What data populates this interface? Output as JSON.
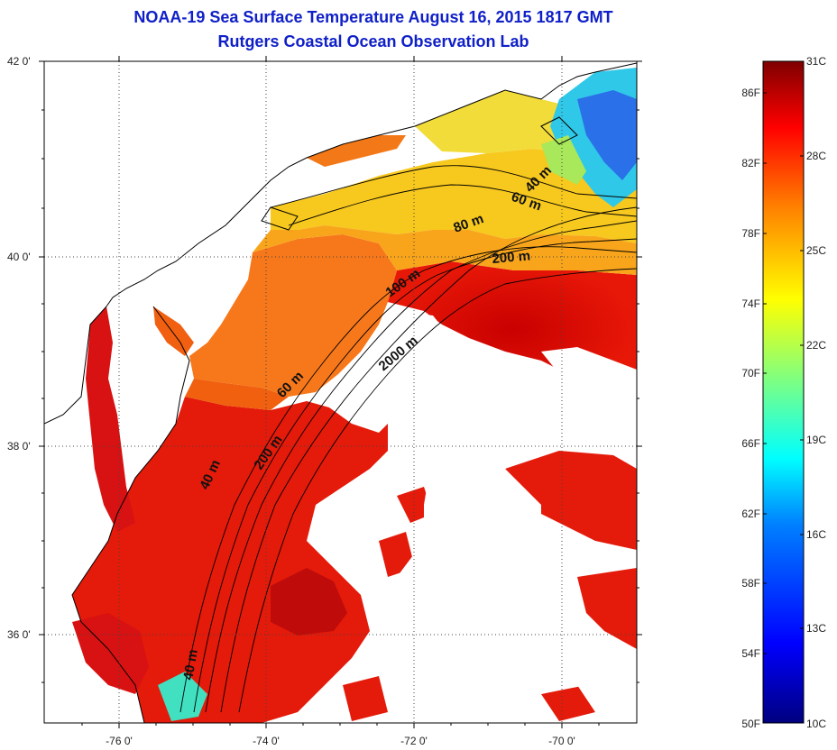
{
  "title": {
    "line1": "NOAA-19 Sea Surface Temperature August 16, 2015 1817 GMT",
    "line2": "Rutgers Coastal Ocean Observation Lab"
  },
  "colors": {
    "title": "#1020c8",
    "land_and_clouds": "#ffffff",
    "coastline": "#000000"
  },
  "map": {
    "lat_labels": [
      "42 0'",
      "40 0'",
      "38 0'",
      "36 0'"
    ],
    "lon_labels": [
      "-76 0'",
      "-74 0'",
      "-72 0'",
      "-70 0'"
    ],
    "gridlines": "dotted",
    "contour_labels": [
      "40 m",
      "60 m",
      "80 m",
      "200 m",
      "100 m",
      "2000 m",
      "60 m",
      "200 m",
      "40 m",
      "40 m"
    ]
  },
  "colorbar": {
    "fahrenheit_labels": [
      "86F",
      "82F",
      "78F",
      "74F",
      "70F",
      "66F",
      "62F",
      "58F",
      "54F",
      "50F"
    ],
    "celsius_labels": [
      "31C",
      "28C",
      "25C",
      "22C",
      "19C",
      "16C",
      "13C",
      "10C"
    ],
    "colormap": [
      "#00007f",
      "#0000ff",
      "#0080ff",
      "#00ffff",
      "#80ff80",
      "#ffff00",
      "#ff8000",
      "#ff0000",
      "#7f0000"
    ]
  }
}
